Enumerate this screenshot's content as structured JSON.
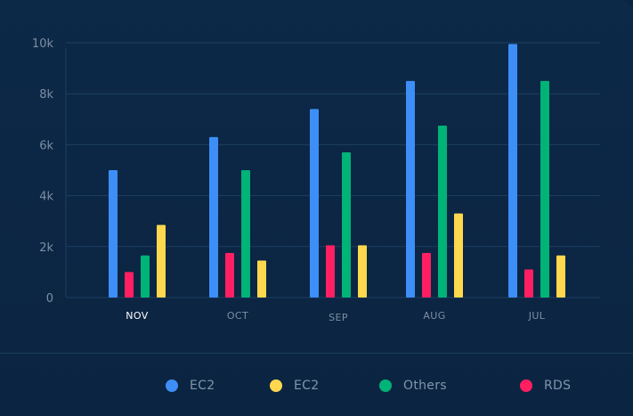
{
  "chart_data": {
    "type": "bar",
    "categories": [
      "NOV",
      "OCT",
      "SEP",
      "AUG",
      "JUL"
    ],
    "active_category": "NOV",
    "series": [
      {
        "name": "EC2",
        "color": "#3d8ef7",
        "values": [
          5000,
          6300,
          7400,
          8500,
          9950
        ]
      },
      {
        "name": "RDS",
        "color": "#ff1f62",
        "values": [
          1000,
          1750,
          2050,
          1750,
          1100
        ]
      },
      {
        "name": "Others",
        "color": "#00b377",
        "values": [
          1650,
          5000,
          5700,
          6750,
          8500
        ]
      },
      {
        "name": "EC2",
        "color": "#ffd84d",
        "values": [
          2850,
          1450,
          2050,
          3300,
          1650
        ]
      }
    ],
    "yticks": [
      {
        "value": 0,
        "label": "0"
      },
      {
        "value": 2000,
        "label": "2k"
      },
      {
        "value": 4000,
        "label": "4k"
      },
      {
        "value": 6000,
        "label": "6k"
      },
      {
        "value": 8000,
        "label": "8k"
      },
      {
        "value": 10000,
        "label": "10k"
      }
    ],
    "ylim": [
      0,
      10000
    ],
    "grid": true,
    "legend_placement": "bottom"
  },
  "legend": [
    {
      "label": "EC2",
      "color": "#3d8ef7"
    },
    {
      "label": "EC2",
      "color": "#ffd84d"
    },
    {
      "label": "Others",
      "color": "#00b377"
    },
    {
      "label": "RDS",
      "color": "#ff1f62"
    }
  ]
}
